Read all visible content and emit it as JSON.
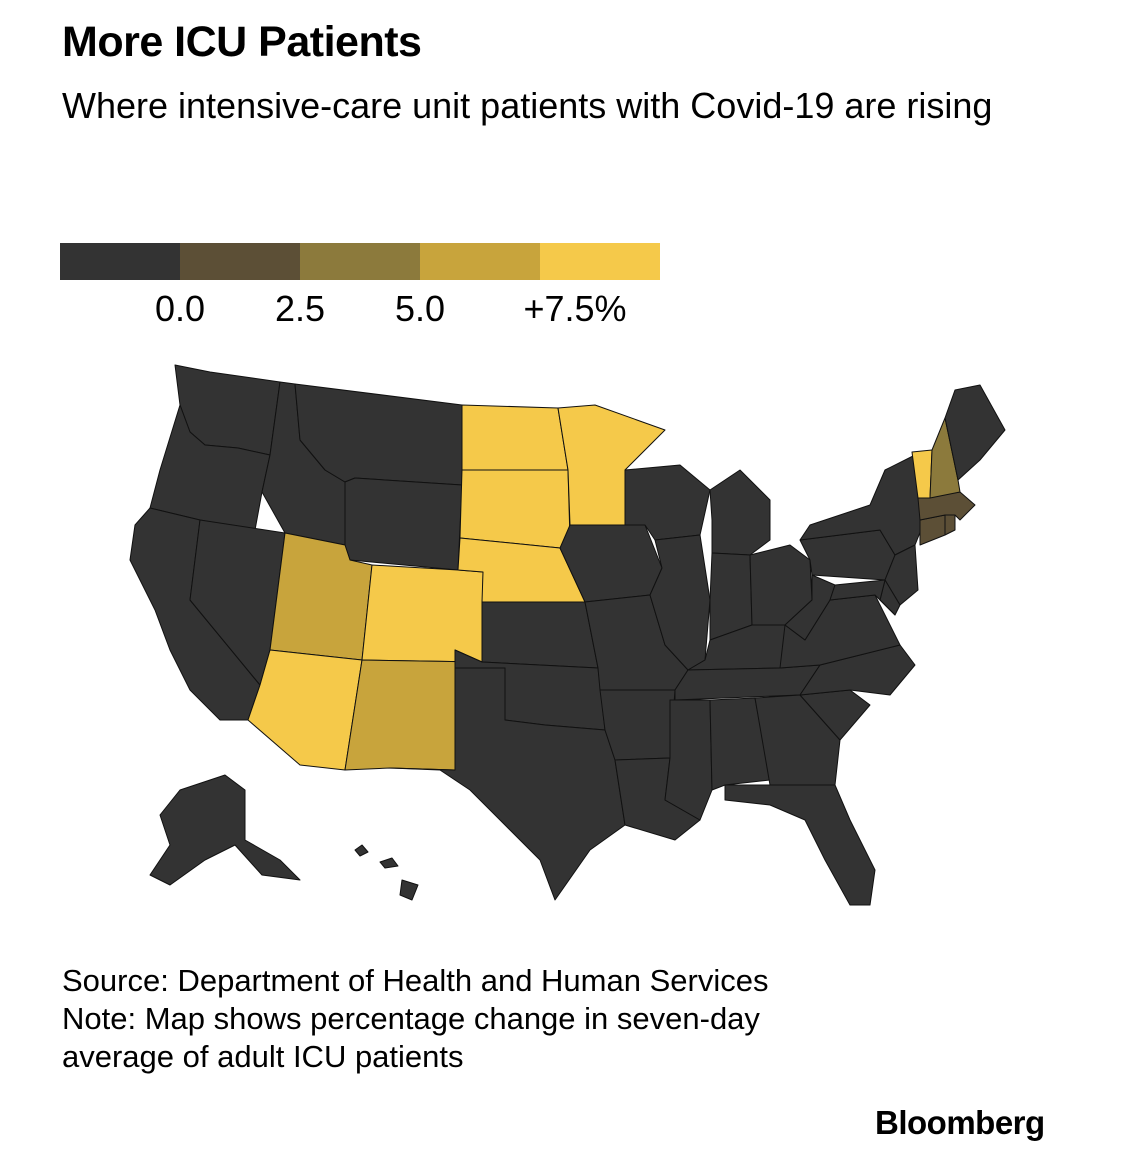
{
  "title": "More ICU Patients",
  "subtitle": "Where intensive-care unit patients with Covid-19 are rising",
  "legend": {
    "colors": [
      "#333333",
      "#5c4f36",
      "#8c7a3c",
      "#c8a43c",
      "#f5c94a"
    ],
    "labels": [
      "0.0",
      "2.5",
      "5.0",
      "+7.5%"
    ]
  },
  "map": {
    "unit": "percentage change",
    "states": {
      "WA": "<0.0",
      "OR": "<0.0",
      "CA": "<0.0",
      "NV": "<0.0",
      "ID": "<0.0",
      "MT": "<0.0",
      "WY": "<0.0",
      "UT": "5.0–7.5",
      "AZ": ">7.5",
      "CO": ">7.5",
      "NM": "5.0–7.5",
      "ND": ">7.5",
      "SD": ">7.5",
      "NE": ">7.5",
      "MN": ">7.5",
      "KS": "<0.0",
      "OK": "<0.0",
      "TX": "<0.0",
      "IA": "<0.0",
      "MO": "<0.0",
      "AR": "<0.0",
      "LA": "<0.0",
      "WI": "<0.0",
      "IL": "<0.0",
      "MI": "<0.0",
      "IN": "<0.0",
      "OH": "<0.0",
      "KY": "<0.0",
      "TN": "<0.0",
      "MS": "<0.0",
      "AL": "<0.0",
      "GA": "<0.0",
      "FL": "<0.0",
      "SC": "<0.0",
      "NC": "<0.0",
      "VA": "<0.0",
      "WV": "<0.0",
      "PA": "<0.0",
      "NY": "<0.0",
      "NJ": "<0.0",
      "DE": "<0.0",
      "MD": "<0.0",
      "CT": "0.0–2.5",
      "RI": "0.0–2.5",
      "MA": "0.0–2.5",
      "VT": ">7.5",
      "NH": "2.5–5.0",
      "ME": "<0.0",
      "AK": "<0.0",
      "HI": "<0.0"
    }
  },
  "footer": {
    "source": "Source: Department of Health and Human Services",
    "note": "Note: Map shows percentage change in seven-day average of adult ICU patients"
  },
  "brand": "Bloomberg"
}
